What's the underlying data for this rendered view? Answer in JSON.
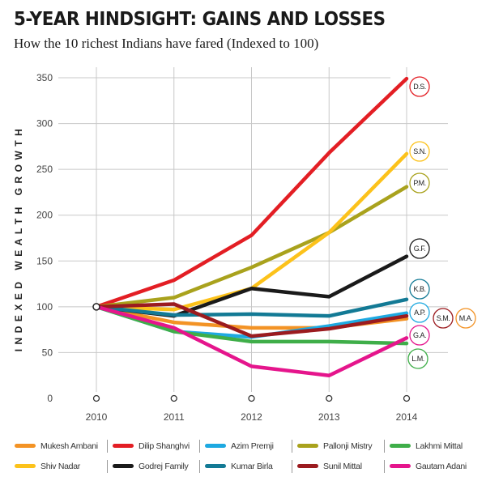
{
  "title": "5-YEAR HINDSIGHT: GAINS AND LOSSES",
  "subtitle": "How the 10 richest Indians have fared (Indexed to 100)",
  "chart_data": {
    "type": "line",
    "title": "5-YEAR HINDSIGHT: GAINS AND LOSSES",
    "subtitle": "How the 10 richest Indians have fared (Indexed to 100)",
    "ylabel": "INDEXED WEALTH GROWTH",
    "xlabel": "",
    "x": [
      "2010",
      "2011",
      "2012",
      "2013",
      "2014"
    ],
    "yticks": [
      0,
      50,
      100,
      150,
      200,
      250,
      300,
      350
    ],
    "ylim": [
      0,
      350
    ],
    "grid": true,
    "legend": "bottom",
    "series": [
      {
        "name": "Mukesh Ambani",
        "abbr": "M.A.",
        "color": "#f39325",
        "values": [
          100,
          83,
          77,
          77,
          87
        ]
      },
      {
        "name": "Dilip Shanghvi",
        "abbr": "D.S.",
        "color": "#e31e24",
        "values": [
          100,
          129,
          178,
          268,
          349
        ]
      },
      {
        "name": "Azim Premji",
        "abbr": "A.P.",
        "color": "#1ea9e1",
        "values": [
          100,
          73,
          67,
          79,
          93
        ]
      },
      {
        "name": "Pallonji Mistry",
        "abbr": "P.M.",
        "color": "#a9a21d",
        "values": [
          100,
          110,
          143,
          181,
          231
        ]
      },
      {
        "name": "Lakhmi Mittal",
        "abbr": "L.M.",
        "color": "#3fae49",
        "values": [
          100,
          73,
          62,
          62,
          60
        ]
      },
      {
        "name": "Shiv Nadar",
        "abbr": "S.N.",
        "color": "#fcc21b",
        "values": [
          100,
          97,
          120,
          181,
          267
        ]
      },
      {
        "name": "Godrej Family",
        "abbr": "G.F.",
        "color": "#1a1a1a",
        "values": [
          100,
          90,
          120,
          111,
          155
        ]
      },
      {
        "name": "Kumar Birla",
        "abbr": "K.B.",
        "color": "#137a95",
        "values": [
          100,
          91,
          92,
          90,
          108
        ]
      },
      {
        "name": "Sunil Mittal",
        "abbr": "S.M.",
        "color": "#9b1b1f",
        "values": [
          100,
          103,
          68,
          76,
          90
        ]
      },
      {
        "name": "Gautam Adani",
        "abbr": "G.A.",
        "color": "#e5158c",
        "values": [
          100,
          77,
          35,
          25,
          66
        ]
      }
    ]
  }
}
